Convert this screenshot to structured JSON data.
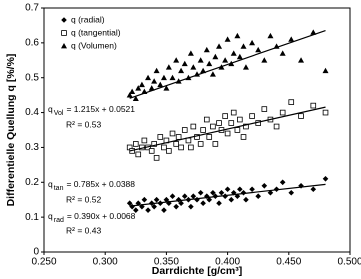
{
  "chart_data": {
    "type": "scatter",
    "xlabel": "Darrdichte [g/cm³]",
    "ylabel": "Differentielle Quellung q [%/%]",
    "xlim": [
      0.25,
      0.5
    ],
    "ylim": [
      0,
      0.7
    ],
    "xticks": [
      {
        "value": 0.25,
        "label": "0.250"
      },
      {
        "value": 0.3,
        "label": "0.300"
      },
      {
        "value": 0.35,
        "label": "0.350"
      },
      {
        "value": 0.4,
        "label": "0.400"
      },
      {
        "value": 0.45,
        "label": "0.450"
      },
      {
        "value": 0.5,
        "label": "0.500"
      }
    ],
    "yticks": [
      0,
      0.1,
      0.2,
      0.3,
      0.4,
      0.5,
      0.6,
      0.7
    ],
    "grid": false,
    "legend": "upper-left",
    "x": [
      0.32,
      0.322,
      0.325,
      0.327,
      0.33,
      0.332,
      0.335,
      0.338,
      0.34,
      0.342,
      0.345,
      0.348,
      0.35,
      0.352,
      0.355,
      0.358,
      0.36,
      0.362,
      0.365,
      0.368,
      0.37,
      0.372,
      0.375,
      0.378,
      0.38,
      0.383,
      0.385,
      0.388,
      0.39,
      0.393,
      0.395,
      0.398,
      0.4,
      0.403,
      0.405,
      0.408,
      0.41,
      0.413,
      0.415,
      0.42,
      0.425,
      0.43,
      0.435,
      0.44,
      0.445,
      0.452,
      0.46,
      0.47,
      0.48
    ],
    "series": [
      {
        "name": "q (radial)",
        "color": "#000000",
        "marker": "diamond",
        "values": [
          0.14,
          0.13,
          0.12,
          0.14,
          0.13,
          0.15,
          0.12,
          0.14,
          0.13,
          0.15,
          0.14,
          0.12,
          0.15,
          0.14,
          0.16,
          0.13,
          0.15,
          0.14,
          0.16,
          0.15,
          0.13,
          0.16,
          0.15,
          0.17,
          0.14,
          0.16,
          0.15,
          0.17,
          0.16,
          0.14,
          0.17,
          0.16,
          0.18,
          0.15,
          0.17,
          0.16,
          0.18,
          0.17,
          0.15,
          0.18,
          0.16,
          0.19,
          0.17,
          0.18,
          0.2,
          0.17,
          0.19,
          0.18,
          0.21
        ],
        "trendline": {
          "slope": 0.39,
          "intercept": 0.0068,
          "x_range": [
            0.32,
            0.48
          ]
        },
        "annotation": {
          "symbol": "q",
          "subscript": "rad",
          "equation": "= 0.390x + 0.0068",
          "r2": "R² = 0.43"
        }
      },
      {
        "name": "q (tangential)",
        "color": "#000000",
        "marker": "square-open",
        "values": [
          0.3,
          0.29,
          0.31,
          0.28,
          0.3,
          0.32,
          0.3,
          0.29,
          0.31,
          0.27,
          0.33,
          0.3,
          0.32,
          0.29,
          0.34,
          0.31,
          0.33,
          0.3,
          0.35,
          0.32,
          0.3,
          0.36,
          0.33,
          0.31,
          0.35,
          0.38,
          0.33,
          0.36,
          0.31,
          0.37,
          0.35,
          0.39,
          0.34,
          0.37,
          0.4,
          0.35,
          0.38,
          0.33,
          0.36,
          0.39,
          0.37,
          0.41,
          0.38,
          0.36,
          0.4,
          0.43,
          0.39,
          0.42,
          0.4
        ],
        "trendline": {
          "slope": 0.785,
          "intercept": 0.0388,
          "x_range": [
            0.32,
            0.48
          ]
        },
        "annotation": {
          "symbol": "q",
          "subscript": "tan",
          "equation": "= 0.785x + 0.0388",
          "r2": "R² = 0.52"
        }
      },
      {
        "name": "q (Volumen)",
        "color": "#000000",
        "marker": "triangle",
        "values": [
          0.45,
          0.46,
          0.44,
          0.47,
          0.48,
          0.46,
          0.5,
          0.47,
          0.49,
          0.52,
          0.48,
          0.5,
          0.47,
          0.53,
          0.5,
          0.55,
          0.49,
          0.52,
          0.54,
          0.5,
          0.57,
          0.53,
          0.51,
          0.55,
          0.52,
          0.58,
          0.54,
          0.51,
          0.56,
          0.59,
          0.53,
          0.55,
          0.61,
          0.54,
          0.57,
          0.62,
          0.56,
          0.59,
          0.53,
          0.6,
          0.58,
          0.55,
          0.62,
          0.59,
          0.57,
          0.61,
          0.55,
          0.63,
          0.52
        ],
        "trendline": {
          "slope": 1.215,
          "intercept": 0.0521,
          "x_range": [
            0.32,
            0.48
          ]
        },
        "annotation": {
          "symbol": "q",
          "subscript": "Vol",
          "equation": "= 1.215x + 0.0521",
          "r2": "R² = 0.53"
        }
      }
    ]
  }
}
